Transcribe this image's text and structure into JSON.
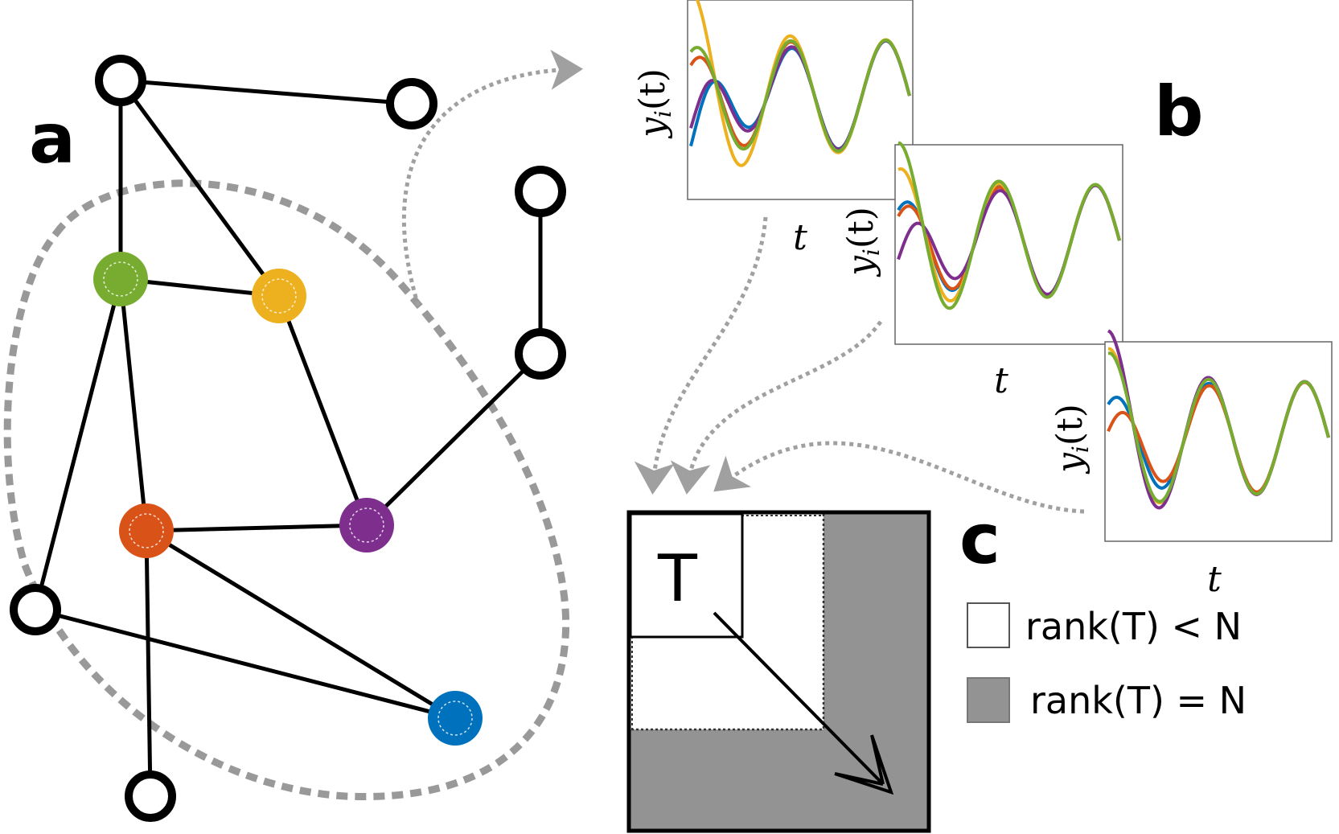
{
  "panels": {
    "a": "a",
    "b": "b",
    "c": "c"
  },
  "node_colors": {
    "green": "#77ac30",
    "yellow": "#edb120",
    "orange": "#d95319",
    "purple": "#7e2f8e",
    "blue": "#0072bd"
  },
  "series_colors": [
    "#0072bd",
    "#d95319",
    "#edb120",
    "#7e2f8e",
    "#77ac30"
  ],
  "plots": [
    {
      "ylabel": "y_i(t)",
      "ylabel_main": "y",
      "ylabel_sub": "i",
      "ylabel_paren": "(t)",
      "xlabel": "t"
    },
    {
      "ylabel": "y_i(t)",
      "ylabel_main": "y",
      "ylabel_sub": "i",
      "ylabel_paren": "(t)",
      "xlabel": "t"
    },
    {
      "ylabel": "y_i(t)",
      "ylabel_main": "y",
      "ylabel_sub": "i",
      "ylabel_paren": "(t)",
      "xlabel": "t"
    }
  ],
  "matrix": {
    "label": "T"
  },
  "legend": [
    {
      "text": "rank(T) < N",
      "color": "#ffffff"
    },
    {
      "text": "rank(T) = N",
      "color": "#939393"
    }
  ]
}
